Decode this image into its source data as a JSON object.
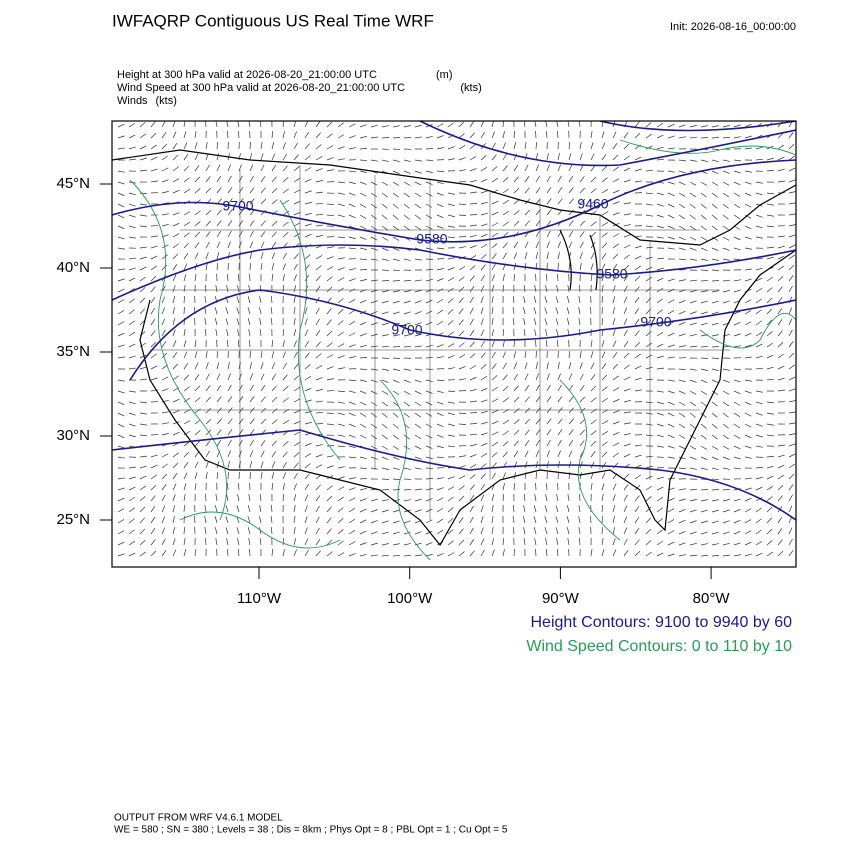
{
  "header": {
    "title": "IWFAQRP Contiguous US Real Time WRF",
    "init": "Init: 2026-08-16_00:00:00"
  },
  "fields": [
    {
      "name": "Height at 300 hPa valid at 2026-08-20_21:00:00 UTC",
      "units": "(m)"
    },
    {
      "name": "Wind Speed at 300 hPa valid at 2026-08-20_21:00:00 UTC",
      "units": "(kts)"
    },
    {
      "name": "Winds",
      "units": "(kts)"
    }
  ],
  "map": {
    "lat_labels": [
      "45°N",
      "40°N",
      "35°N",
      "30°N",
      "25°N"
    ],
    "lon_labels": [
      "110°W",
      "100°W",
      "90°W",
      "80°W"
    ],
    "contour_labels": [
      "9700",
      "9580",
      "9460",
      "9580",
      "9700",
      "9700"
    ]
  },
  "legend": [
    "Height Contours: 9100 to 9940 by 60",
    "Wind Speed Contours: 0 to 110 by 10"
  ],
  "footer": [
    "OUTPUT FROM WRF V4.6.1 MODEL",
    "WE = 580 ; SN = 380 ; Levels = 38 ; Dis = 8km ; Phys Opt = 8 ; PBL Opt = 1 ; Cu Opt = 5"
  ]
}
